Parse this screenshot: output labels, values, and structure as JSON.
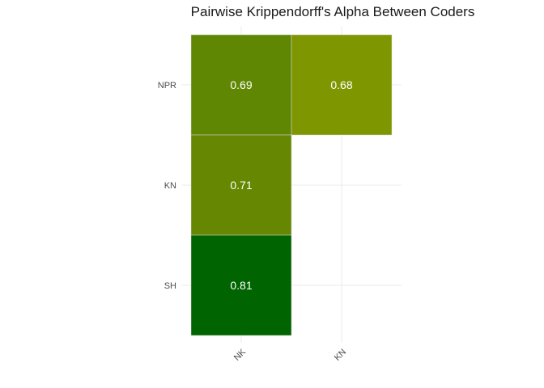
{
  "chart_data": {
    "type": "heatmap",
    "title": "Pairwise Krippendorff's Alpha Between Coders",
    "x_categories": [
      "NK",
      "KN"
    ],
    "y_categories": [
      "SH",
      "KN",
      "NPR"
    ],
    "cells": [
      {
        "x": "NK",
        "y": "NPR",
        "value": 0.69,
        "label": "0.69",
        "color": "#5f8703"
      },
      {
        "x": "KN",
        "y": "NPR",
        "value": 0.68,
        "label": "0.68",
        "color": "#7e9701"
      },
      {
        "x": "NK",
        "y": "KN",
        "value": 0.71,
        "label": "0.71",
        "color": "#668702"
      },
      {
        "x": "NK",
        "y": "SH",
        "value": 0.81,
        "label": "0.81",
        "color": "#006400"
      }
    ],
    "xlabel": "",
    "ylabel": "",
    "grid": true,
    "legend": "none"
  }
}
